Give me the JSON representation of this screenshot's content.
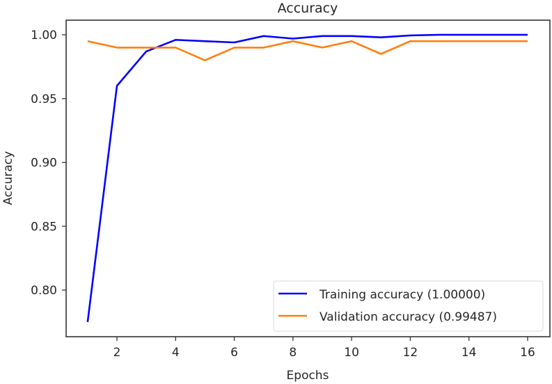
{
  "chart_data": {
    "type": "line",
    "title": "Accuracy",
    "xlabel": "Epochs",
    "ylabel": "Accuracy",
    "x": [
      1,
      2,
      3,
      4,
      5,
      6,
      7,
      8,
      9,
      10,
      11,
      12,
      13,
      14,
      15,
      16
    ],
    "xticks": [
      2,
      4,
      6,
      8,
      10,
      12,
      14,
      16
    ],
    "xtick_labels": [
      "2",
      "4",
      "6",
      "8",
      "10",
      "12",
      "14",
      "16"
    ],
    "yticks": [
      0.8,
      0.85,
      0.9,
      0.95,
      1.0
    ],
    "ytick_labels": [
      "0.80",
      "0.85",
      "0.90",
      "0.95",
      "1.00"
    ],
    "xlim": [
      0.25,
      16.75
    ],
    "ylim": [
      0.7628,
      1.0115
    ],
    "grid": false,
    "legend_position": "lower right",
    "series": [
      {
        "name": "Training accuracy (1.00000)",
        "color": "#0000ff",
        "values": [
          0.775,
          0.96,
          0.987,
          0.996,
          0.995,
          0.994,
          0.999,
          0.997,
          0.999,
          0.999,
          0.998,
          0.9995,
          1.0,
          1.0,
          1.0,
          1.0
        ]
      },
      {
        "name": "Validation accuracy (0.99487)",
        "color": "#ff7f0e",
        "values": [
          0.995,
          0.99,
          0.99,
          0.99,
          0.98,
          0.99,
          0.99,
          0.995,
          0.99,
          0.995,
          0.985,
          0.995,
          0.995,
          0.995,
          0.995,
          0.995
        ]
      }
    ]
  }
}
